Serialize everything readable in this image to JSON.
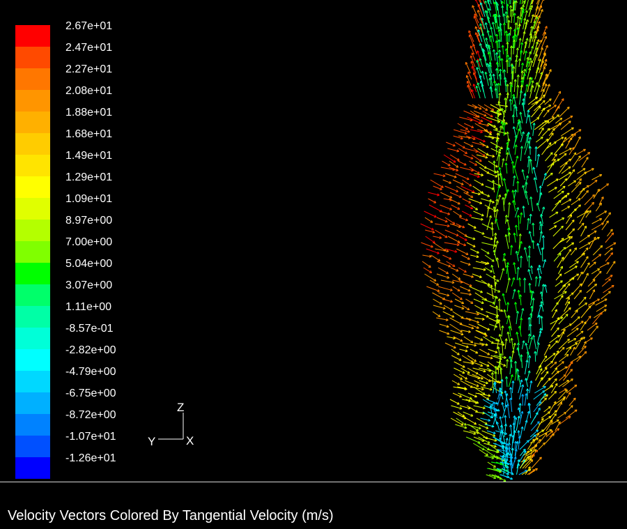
{
  "legend": {
    "labels": [
      "2.67e+01",
      "2.47e+01",
      "2.27e+01",
      "2.08e+01",
      "1.88e+01",
      "1.68e+01",
      "1.49e+01",
      "1.29e+01",
      "1.09e+01",
      "8.97e+00",
      "7.00e+00",
      "5.04e+00",
      "3.07e+00",
      "1.11e+00",
      "-8.57e-01",
      "-2.82e+00",
      "-4.79e+00",
      "-6.75e+00",
      "-8.72e+00",
      "-1.07e+01",
      "-1.26e+01"
    ],
    "colors": [
      "#ff0000",
      "#ff4a00",
      "#ff7700",
      "#ff9500",
      "#ffb000",
      "#ffcc00",
      "#ffe400",
      "#ffff00",
      "#e0ff00",
      "#b4ff00",
      "#80ff00",
      "#00ff00",
      "#00ff6a",
      "#00ffa6",
      "#00ffd8",
      "#00ffff",
      "#00d8ff",
      "#00b0ff",
      "#0082ff",
      "#0050ff",
      "#0000ff"
    ]
  },
  "axes": {
    "z": "Z",
    "y": "Y",
    "x": "X"
  },
  "caption": "Velocity Vectors Colored By Tangential Velocity (m/s)"
}
